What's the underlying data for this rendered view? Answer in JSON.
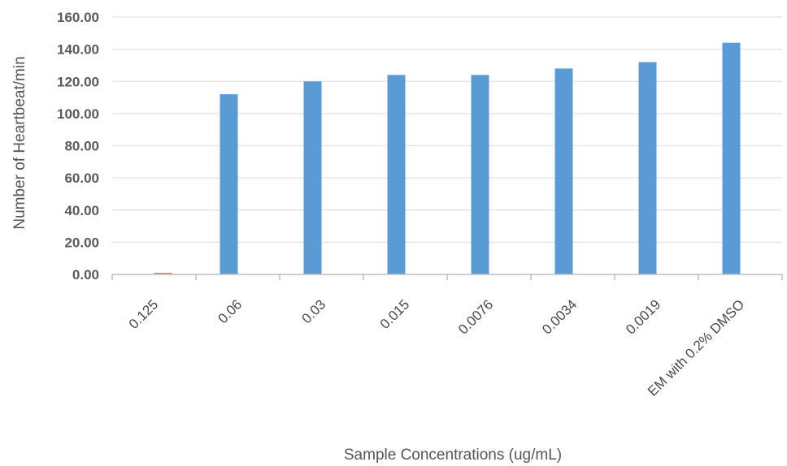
{
  "chart_data": {
    "type": "bar",
    "title": "",
    "xlabel": "Sample Concentrations (ug/mL)",
    "ylabel": "Number of Heartbeat/min",
    "categories": [
      "0.125",
      "0.06",
      "0.03",
      "0.015",
      "0.0076",
      "0.0034",
      "0.0019",
      "EM with 0.2% DMSO"
    ],
    "series": [
      {
        "values": [
          0,
          112,
          120,
          124,
          124,
          128,
          132,
          144
        ],
        "color": "#5b9bd5"
      },
      {
        "values": [
          1,
          0,
          0,
          0,
          0,
          0,
          0,
          0
        ],
        "color": "#ed7d31"
      }
    ],
    "yticks": [
      "0.00",
      "20.00",
      "40.00",
      "60.00",
      "80.00",
      "100.00",
      "120.00",
      "140.00",
      "160.00"
    ],
    "ylim": [
      0,
      160
    ],
    "grid": true,
    "legend": "none"
  }
}
